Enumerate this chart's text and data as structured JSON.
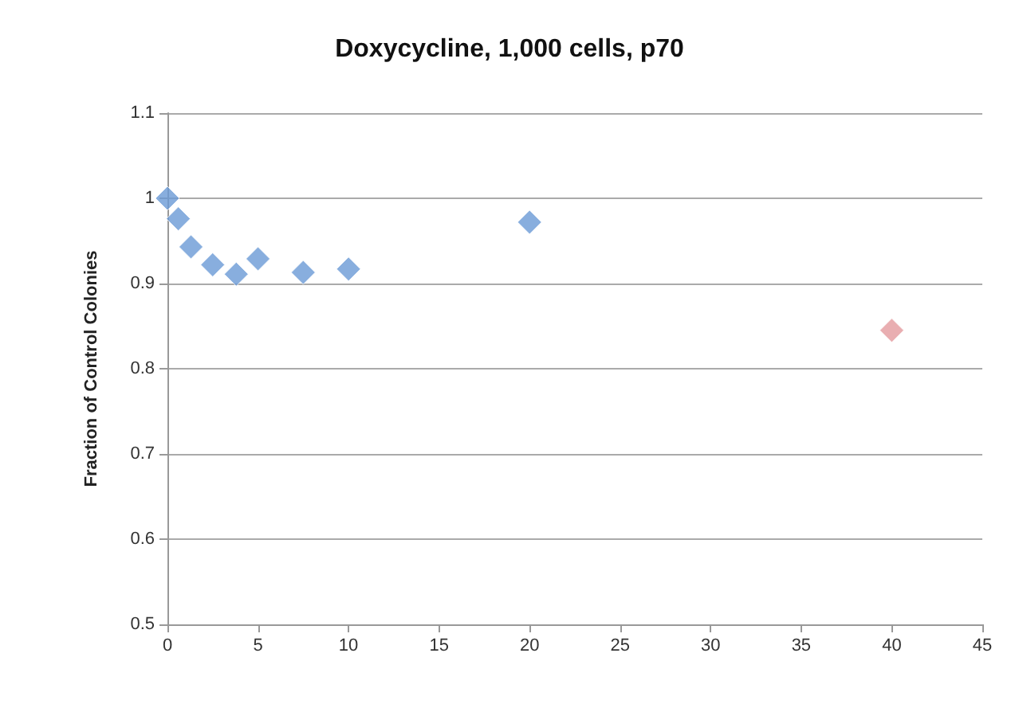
{
  "chart_data": {
    "type": "scatter",
    "title": "Doxycycline, 1,000 cells, p70",
    "ylabel": "Fraction of Control Colonies",
    "x": [
      0,
      0.6,
      1.3,
      2.5,
      3.8,
      5,
      7.5,
      10,
      20,
      40
    ],
    "values": [
      1.0,
      0.976,
      0.943,
      0.922,
      0.911,
      0.929,
      0.913,
      0.917,
      0.972,
      0.845
    ],
    "colors": [
      "#6a9ad6",
      "#6a9ad6",
      "#6a9ad6",
      "#6a9ad6",
      "#6a9ad6",
      "#6a9ad6",
      "#6a9ad6",
      "#6a9ad6",
      "#6a9ad6",
      "#e39a9e"
    ],
    "xlim": [
      0,
      45
    ],
    "xticks": [
      0,
      5,
      10,
      15,
      20,
      25,
      30,
      35,
      40,
      45
    ],
    "ylim": [
      0.5,
      1.1
    ],
    "yticks": [
      0.5,
      0.6,
      0.7,
      0.8,
      0.9,
      1,
      1.1
    ],
    "grid": "y",
    "marker": "diamond"
  }
}
